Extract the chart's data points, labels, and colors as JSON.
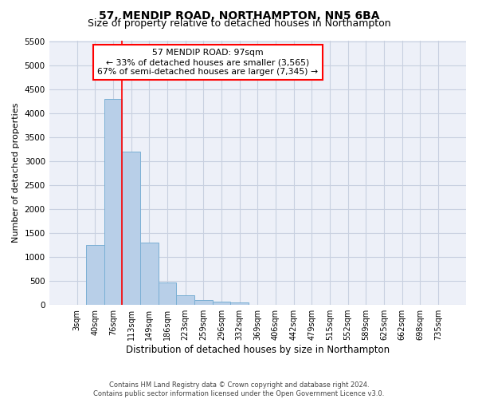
{
  "title": "57, MENDIP ROAD, NORTHAMPTON, NN5 6BA",
  "subtitle": "Size of property relative to detached houses in Northampton",
  "xlabel": "Distribution of detached houses by size in Northampton",
  "ylabel": "Number of detached properties",
  "footnote1": "Contains HM Land Registry data © Crown copyright and database right 2024.",
  "footnote2": "Contains public sector information licensed under the Open Government Licence v3.0.",
  "bar_labels": [
    "3sqm",
    "40sqm",
    "76sqm",
    "113sqm",
    "149sqm",
    "186sqm",
    "223sqm",
    "259sqm",
    "296sqm",
    "332sqm",
    "369sqm",
    "406sqm",
    "442sqm",
    "479sqm",
    "515sqm",
    "552sqm",
    "589sqm",
    "625sqm",
    "662sqm",
    "698sqm",
    "735sqm"
  ],
  "bar_values": [
    0,
    1250,
    4300,
    3200,
    1300,
    475,
    200,
    100,
    75,
    50,
    0,
    0,
    0,
    0,
    0,
    0,
    0,
    0,
    0,
    0,
    0
  ],
  "bar_color": "#b8cfe8",
  "bar_edgecolor": "#7aafd4",
  "grid_color": "#c8d0e0",
  "background_color": "#edf0f8",
  "red_line_x": 2.5,
  "annotation_line1": "57 MENDIP ROAD: 97sqm",
  "annotation_line2": "← 33% of detached houses are smaller (3,565)",
  "annotation_line3": "67% of semi-detached houses are larger (7,345) →",
  "ylim": [
    0,
    5500
  ],
  "yticks": [
    0,
    500,
    1000,
    1500,
    2000,
    2500,
    3000,
    3500,
    4000,
    4500,
    5000,
    5500
  ],
  "title_fontsize": 10,
  "subtitle_fontsize": 9,
  "tick_fontsize": 7,
  "ylabel_fontsize": 8,
  "xlabel_fontsize": 8.5
}
